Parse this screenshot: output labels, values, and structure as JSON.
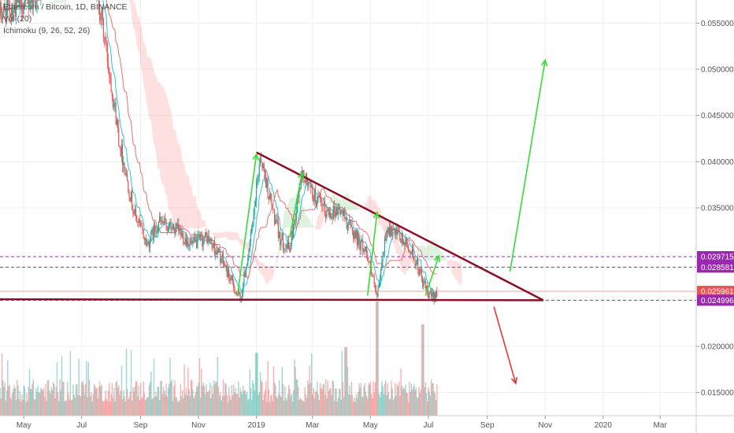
{
  "legend": {
    "symbol": "Ethereum / Bitcoin, 1D, BINANCE",
    "volume": "Vol (20)",
    "ichimoku": "Ichimoku (9, 26, 52, 26)"
  },
  "chart_data": {
    "type": "candlestick",
    "y_axis": {
      "range": [
        0.0125,
        0.0575
      ],
      "ticks": [
        "0.015000",
        "0.020000",
        "0.035000",
        "0.040000",
        "0.045000",
        "0.050000",
        "0.055000"
      ],
      "tick_values": [
        0.015,
        0.02,
        0.035,
        0.04,
        0.045,
        0.05,
        0.055
      ],
      "price_tags": [
        {
          "label": "0.029715",
          "value": 0.029715,
          "color": "#9c27b0"
        },
        {
          "label": "0.028581",
          "value": 0.028581,
          "color": "#9c27b0"
        },
        {
          "label": "0.025961",
          "value": 0.025961,
          "color": "#ef5350"
        },
        {
          "label": "0.024996",
          "value": 0.024996,
          "color": "#9c27b0"
        }
      ]
    },
    "x_axis": {
      "ticks": [
        "May",
        "Jul",
        "Sep",
        "Nov",
        "2019",
        "Mar",
        "May",
        "Jul",
        "Sep",
        "Nov",
        "2020",
        "Mar"
      ],
      "tick_dates": [
        "2018-05-01",
        "2018-07-01",
        "2018-09-01",
        "2018-11-01",
        "2019-01-01",
        "2019-03-01",
        "2019-05-01",
        "2019-07-01",
        "2019-09-01",
        "2019-11-01",
        "2020-01-01",
        "2020-03-01"
      ],
      "range": [
        "2018-04-06",
        "2020-04-08"
      ]
    },
    "price_path": [
      [
        "2018-04-06",
        0.056
      ],
      [
        "2018-05-15",
        0.058
      ],
      [
        "2018-06-15",
        0.064
      ],
      [
        "2018-07-15",
        0.06
      ],
      [
        "2018-07-30",
        0.05
      ],
      [
        "2018-08-10",
        0.042
      ],
      [
        "2018-08-25",
        0.0345
      ],
      [
        "2018-09-08",
        0.031
      ],
      [
        "2018-09-20",
        0.0335
      ],
      [
        "2018-10-10",
        0.0325
      ],
      [
        "2018-10-25",
        0.031
      ],
      [
        "2018-11-10",
        0.0318
      ],
      [
        "2018-11-25",
        0.0295
      ],
      [
        "2018-12-08",
        0.0265
      ],
      [
        "2018-12-15",
        0.025
      ],
      [
        "2018-12-28",
        0.033
      ],
      [
        "2019-01-05",
        0.0408
      ],
      [
        "2019-01-15",
        0.036
      ],
      [
        "2019-01-25",
        0.0318
      ],
      [
        "2019-02-05",
        0.0305
      ],
      [
        "2019-02-18",
        0.0388
      ],
      [
        "2019-03-01",
        0.0365
      ],
      [
        "2019-03-15",
        0.0345
      ],
      [
        "2019-03-30",
        0.0348
      ],
      [
        "2019-04-15",
        0.032
      ],
      [
        "2019-04-28",
        0.03
      ],
      [
        "2019-05-08",
        0.025
      ],
      [
        "2019-05-18",
        0.0328
      ],
      [
        "2019-06-01",
        0.0318
      ],
      [
        "2019-06-15",
        0.03
      ],
      [
        "2019-06-25",
        0.027
      ],
      [
        "2019-07-02",
        0.0252
      ],
      [
        "2019-07-10",
        0.026
      ]
    ],
    "volume": {
      "range": [
        "2018-04-06",
        "2019-07-10"
      ],
      "level_ticks": [
        0,
        0.5
      ],
      "peaks": [
        {
          "date": "2019-01-01",
          "value": 0.55
        },
        {
          "date": "2019-04-05",
          "value": 0.6
        },
        {
          "date": "2019-05-08",
          "value": 1.0
        },
        {
          "date": "2019-06-25",
          "value": 0.8
        }
      ]
    },
    "drawings": {
      "descending_trendline": [
        [
          "2019-01-01",
          0.041
        ],
        [
          "2019-10-30",
          0.025
        ]
      ],
      "support_line": [
        [
          "2018-04-06",
          0.0251
        ],
        [
          "2019-10-30",
          0.025
        ]
      ],
      "up_arrows": [
        [
          [
            "2018-12-12",
            0.0255
          ],
          [
            "2019-01-01",
            0.0408
          ]
        ],
        [
          [
            "2019-02-05",
            0.0318
          ],
          [
            "2019-02-18",
            0.0388
          ]
        ],
        [
          [
            "2019-04-28",
            0.0255
          ],
          [
            "2019-05-08",
            0.0345
          ]
        ],
        [
          [
            "2019-06-28",
            0.0255
          ],
          [
            "2019-07-12",
            0.0298
          ]
        ],
        [
          [
            "2019-09-25",
            0.0281
          ],
          [
            "2019-11-01",
            0.051
          ]
        ]
      ],
      "down_arrow": [
        [
          "2019-09-08",
          0.0243
        ],
        [
          "2019-10-01",
          0.016
        ]
      ]
    }
  }
}
